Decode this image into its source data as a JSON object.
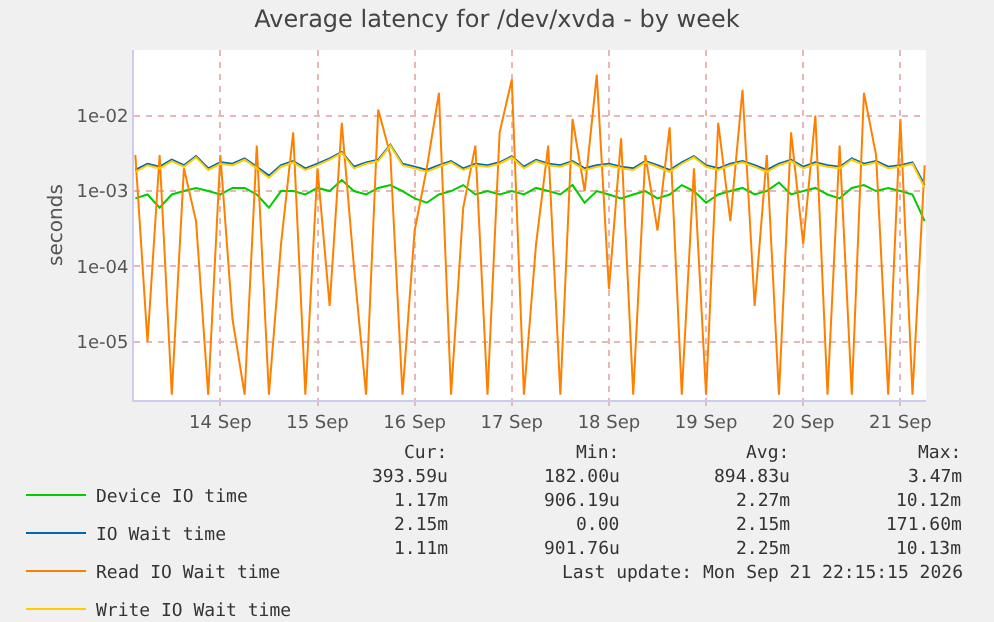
{
  "chart_data": {
    "type": "line",
    "title": "Average latency for /dev/xvda - by week",
    "ylabel": "seconds",
    "x": [
      "2026-09-13T03:00",
      "2026-09-13T06:00",
      "2026-09-13T09:00",
      "2026-09-13T12:00",
      "2026-09-13T15:00",
      "2026-09-13T18:00",
      "2026-09-13T21:00",
      "2026-09-14T00:00",
      "2026-09-14T03:00",
      "2026-09-14T06:00",
      "2026-09-14T09:00",
      "2026-09-14T12:00",
      "2026-09-14T15:00",
      "2026-09-14T18:00",
      "2026-09-14T21:00",
      "2026-09-15T00:00",
      "2026-09-15T03:00",
      "2026-09-15T06:00",
      "2026-09-15T09:00",
      "2026-09-15T12:00",
      "2026-09-15T15:00",
      "2026-09-15T18:00",
      "2026-09-15T21:00",
      "2026-09-16T00:00",
      "2026-09-16T03:00",
      "2026-09-16T06:00",
      "2026-09-16T09:00",
      "2026-09-16T12:00",
      "2026-09-16T15:00",
      "2026-09-16T18:00",
      "2026-09-16T21:00",
      "2026-09-17T00:00",
      "2026-09-17T03:00",
      "2026-09-17T06:00",
      "2026-09-17T09:00",
      "2026-09-17T12:00",
      "2026-09-17T15:00",
      "2026-09-17T18:00",
      "2026-09-17T21:00",
      "2026-09-18T00:00",
      "2026-09-18T03:00",
      "2026-09-18T06:00",
      "2026-09-18T09:00",
      "2026-09-18T12:00",
      "2026-09-18T15:00",
      "2026-09-18T18:00",
      "2026-09-18T21:00",
      "2026-09-19T00:00",
      "2026-09-19T03:00",
      "2026-09-19T06:00",
      "2026-09-19T09:00",
      "2026-09-19T12:00",
      "2026-09-19T15:00",
      "2026-09-19T18:00",
      "2026-09-19T21:00",
      "2026-09-20T00:00",
      "2026-09-20T03:00",
      "2026-09-20T06:00",
      "2026-09-20T09:00",
      "2026-09-20T12:00",
      "2026-09-20T15:00",
      "2026-09-20T18:00",
      "2026-09-20T21:00",
      "2026-09-21T00:00",
      "2026-09-21T03:00",
      "2026-09-21T06:00"
    ],
    "series": [
      {
        "name": "Device IO time",
        "color": "#00cc00",
        "values": [
          0.0008,
          0.0009,
          0.0006,
          0.0009,
          0.001,
          0.0011,
          0.001,
          0.0009,
          0.0011,
          0.0011,
          0.0009,
          0.0006,
          0.001,
          0.001,
          0.0009,
          0.0011,
          0.001,
          0.0014,
          0.001,
          0.0009,
          0.0011,
          0.0012,
          0.001,
          0.0008,
          0.0007,
          0.0009,
          0.001,
          0.0012,
          0.0009,
          0.001,
          0.0009,
          0.001,
          0.0009,
          0.0011,
          0.001,
          0.0009,
          0.0012,
          0.0007,
          0.001,
          0.0009,
          0.0008,
          0.0009,
          0.001,
          0.0008,
          0.0009,
          0.0012,
          0.001,
          0.0007,
          0.0009,
          0.001,
          0.0011,
          0.0009,
          0.001,
          0.0013,
          0.0009,
          0.001,
          0.0011,
          0.0009,
          0.0008,
          0.0011,
          0.0012,
          0.001,
          0.0011,
          0.001,
          0.0009,
          0.0004
        ]
      },
      {
        "name": "IO Wait time",
        "color": "#0066b3",
        "values": [
          0.0019,
          0.0023,
          0.0021,
          0.0026,
          0.0022,
          0.0029,
          0.002,
          0.0024,
          0.0023,
          0.0027,
          0.0021,
          0.0016,
          0.0022,
          0.0025,
          0.002,
          0.0023,
          0.0027,
          0.0033,
          0.0021,
          0.0024,
          0.0026,
          0.0041,
          0.0023,
          0.0021,
          0.0019,
          0.0022,
          0.0025,
          0.002,
          0.0023,
          0.0022,
          0.0024,
          0.0029,
          0.0021,
          0.0026,
          0.0023,
          0.0022,
          0.0025,
          0.002,
          0.0022,
          0.0023,
          0.0021,
          0.002,
          0.0025,
          0.0022,
          0.0019,
          0.0024,
          0.0029,
          0.0022,
          0.002,
          0.0023,
          0.0025,
          0.0022,
          0.0019,
          0.0023,
          0.0026,
          0.0021,
          0.0024,
          0.0022,
          0.0021,
          0.0027,
          0.0023,
          0.0025,
          0.0021,
          0.0022,
          0.0024,
          0.0012
        ]
      },
      {
        "name": "Read IO Wait time",
        "color": "#ff8000",
        "values": [
          0.003,
          1e-05,
          0.003,
          2e-06,
          0.002,
          0.0004,
          2e-06,
          0.003,
          2e-05,
          2e-06,
          0.004,
          2e-06,
          0.0002,
          0.006,
          2e-06,
          0.002,
          3e-05,
          0.008,
          0.0001,
          2e-06,
          0.012,
          0.003,
          2e-06,
          0.0003,
          0.002,
          0.02,
          2e-06,
          0.0006,
          0.004,
          2e-06,
          0.006,
          0.03,
          2e-06,
          0.0002,
          0.004,
          2e-06,
          0.009,
          0.001,
          0.035,
          5e-05,
          0.005,
          2e-06,
          0.003,
          0.0003,
          0.007,
          2e-06,
          0.002,
          2e-06,
          0.008,
          0.0004,
          0.022,
          3e-05,
          0.003,
          2e-06,
          0.006,
          0.0002,
          0.01,
          2e-06,
          0.004,
          2e-06,
          0.02,
          0.003,
          2e-06,
          0.009,
          2e-06,
          0.0022
        ]
      },
      {
        "name": "Write IO Wait time",
        "color": "#ffcc00",
        "values": [
          0.0018,
          0.0022,
          0.002,
          0.0025,
          0.0021,
          0.0028,
          0.0019,
          0.0023,
          0.0022,
          0.0026,
          0.002,
          0.0015,
          0.0021,
          0.0024,
          0.0019,
          0.0022,
          0.0026,
          0.0032,
          0.002,
          0.0023,
          0.0025,
          0.004,
          0.0022,
          0.002,
          0.0018,
          0.0021,
          0.0024,
          0.0019,
          0.0022,
          0.0021,
          0.0023,
          0.0028,
          0.002,
          0.0025,
          0.0022,
          0.0021,
          0.0024,
          0.0019,
          0.0021,
          0.0022,
          0.002,
          0.0019,
          0.0024,
          0.0021,
          0.0018,
          0.0023,
          0.0028,
          0.0021,
          0.0019,
          0.0022,
          0.0024,
          0.0021,
          0.0018,
          0.0022,
          0.0025,
          0.002,
          0.0023,
          0.0021,
          0.002,
          0.0026,
          0.0022,
          0.0024,
          0.002,
          0.0021,
          0.0023,
          0.0011
        ]
      }
    ],
    "log": "y",
    "ylim": [
      1.7e-06,
      0.074
    ],
    "yticks": [
      {
        "value": 1e-05,
        "label": "1e-05"
      },
      {
        "value": 0.0001,
        "label": "1e-04"
      },
      {
        "value": 0.001,
        "label": "1e-03"
      },
      {
        "value": 0.01,
        "label": "1e-02"
      }
    ],
    "xlim": [
      "2026-09-13T02:40",
      "2026-09-21T06:20"
    ],
    "xticks": [
      {
        "value": "2026-09-14",
        "label": "14 Sep"
      },
      {
        "value": "2026-09-15",
        "label": "15 Sep"
      },
      {
        "value": "2026-09-16",
        "label": "16 Sep"
      },
      {
        "value": "2026-09-17",
        "label": "17 Sep"
      },
      {
        "value": "2026-09-18",
        "label": "18 Sep"
      },
      {
        "value": "2026-09-19",
        "label": "19 Sep"
      },
      {
        "value": "2026-09-20",
        "label": "20 Sep"
      },
      {
        "value": "2026-09-21",
        "label": "21 Sep"
      }
    ],
    "grid": true,
    "legend": "bottom left",
    "annotations": [
      "Cur:",
      "Min:",
      "Avg:",
      "Max:",
      "393.59u",
      "182.00u",
      "894.83u",
      "3.47m",
      "1.17m",
      "906.19u",
      "2.27m",
      "10.12m",
      "2.15m",
      "0.00",
      "2.15m",
      "171.60m",
      "1.11m",
      "901.76u",
      "2.25m",
      "10.13m",
      "Last update: Mon Sep 21 22:15:15 2026"
    ]
  }
}
